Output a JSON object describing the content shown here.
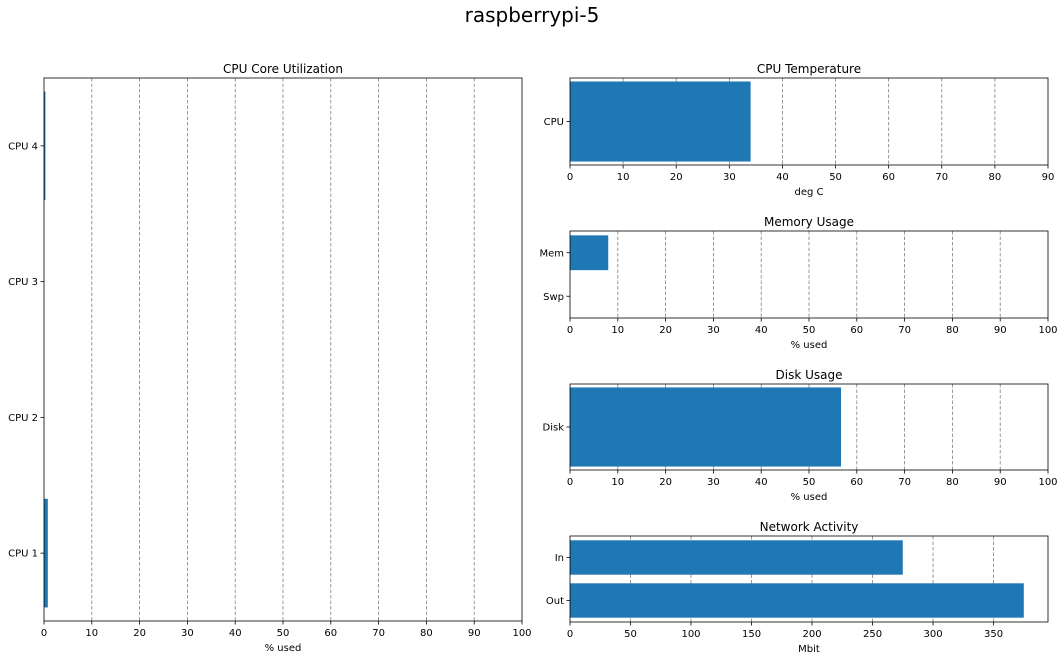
{
  "suptitle": "raspberrypi-5",
  "colors": {
    "bar": "#1f77b4",
    "grid": "#808080"
  },
  "chart_data": [
    {
      "type": "bar",
      "orientation": "horizontal",
      "title": "CPU Core Utilization",
      "xlabel": "% used",
      "ylabel": "",
      "categories": [
        "CPU 1",
        "CPU 2",
        "CPU 3",
        "CPU 4"
      ],
      "values": [
        0.8,
        0,
        0,
        0.3
      ],
      "xlim": [
        0,
        100
      ],
      "xticks": [
        0,
        10,
        20,
        30,
        40,
        50,
        60,
        70,
        80,
        90,
        100
      ],
      "grid": "vertical dashed"
    },
    {
      "type": "bar",
      "orientation": "horizontal",
      "title": "CPU Temperature",
      "xlabel": "deg C",
      "ylabel": "",
      "categories": [
        "CPU"
      ],
      "values": [
        34
      ],
      "xlim": [
        0,
        90
      ],
      "xticks": [
        0,
        10,
        20,
        30,
        40,
        50,
        60,
        70,
        80,
        90
      ],
      "grid": "vertical dashed"
    },
    {
      "type": "bar",
      "orientation": "horizontal",
      "title": "Memory Usage",
      "xlabel": "% used",
      "ylabel": "",
      "categories": [
        "Swp",
        "Mem"
      ],
      "values": [
        0,
        8
      ],
      "xlim": [
        0,
        100
      ],
      "xticks": [
        0,
        10,
        20,
        30,
        40,
        50,
        60,
        70,
        80,
        90,
        100
      ],
      "grid": "vertical dashed"
    },
    {
      "type": "bar",
      "orientation": "horizontal",
      "title": "Disk Usage",
      "xlabel": "% used",
      "ylabel": "",
      "categories": [
        "Disk"
      ],
      "values": [
        56.7
      ],
      "xlim": [
        0,
        100
      ],
      "xticks": [
        0,
        10,
        20,
        30,
        40,
        50,
        60,
        70,
        80,
        90,
        100
      ],
      "grid": "vertical dashed"
    },
    {
      "type": "bar",
      "orientation": "horizontal",
      "title": "Network Activity",
      "xlabel": "Mbit",
      "ylabel": "",
      "categories": [
        "Out",
        "In"
      ],
      "values": [
        375,
        275
      ],
      "xlim": [
        0,
        395
      ],
      "xticks": [
        0,
        50,
        100,
        150,
        200,
        250,
        300,
        350
      ],
      "grid": "vertical dashed"
    }
  ]
}
